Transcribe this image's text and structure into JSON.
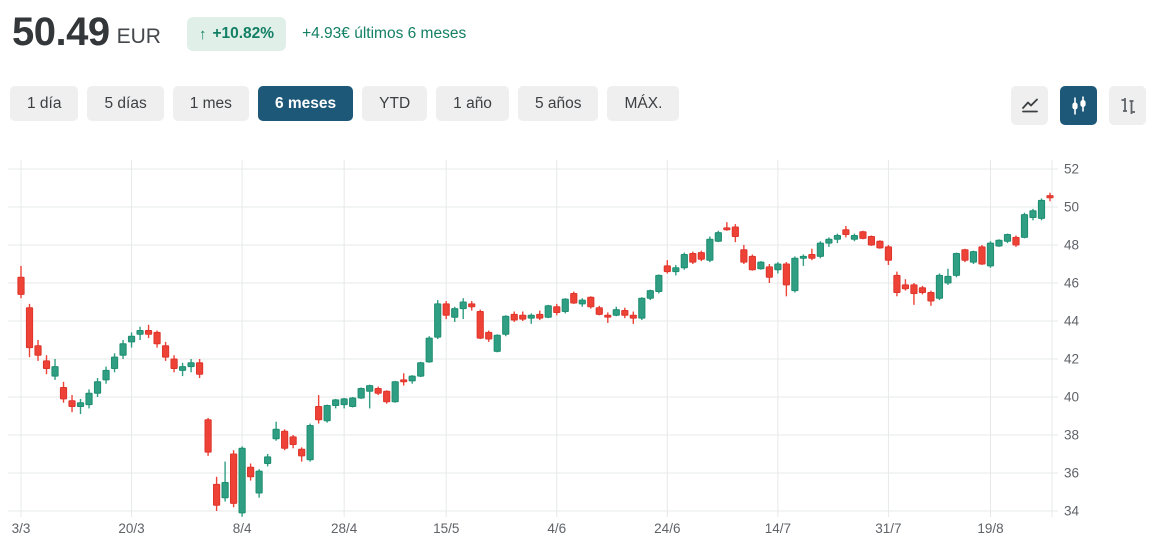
{
  "header": {
    "price": "50.49",
    "currency": "EUR",
    "arrow": "↑",
    "change_percent": "+10.82%",
    "change_text": "+4.93€ últimos 6 meses"
  },
  "range_tabs": [
    {
      "id": "1-dia",
      "label": "1 día",
      "selected": false
    },
    {
      "id": "5-dias",
      "label": "5 días",
      "selected": false
    },
    {
      "id": "1-mes",
      "label": "1 mes",
      "selected": false
    },
    {
      "id": "6-meses",
      "label": "6 meses",
      "selected": true
    },
    {
      "id": "ytd",
      "label": "YTD",
      "selected": false
    },
    {
      "id": "1-ano",
      "label": "1 año",
      "selected": false
    },
    {
      "id": "5-anos",
      "label": "5 años",
      "selected": false
    },
    {
      "id": "max",
      "label": "MÁX.",
      "selected": false
    }
  ],
  "chart_type_buttons": [
    {
      "id": "line-chart-button",
      "icon": "line-chart-icon",
      "selected": false
    },
    {
      "id": "candlestick-button",
      "icon": "candlestick-icon",
      "selected": true
    },
    {
      "id": "ohlc-button",
      "icon": "ohlc-bars-icon",
      "selected": false
    }
  ],
  "colors": {
    "text_dark": "#3c4043",
    "accent_green": "#137f64",
    "badge_bg": "#e0f0e9",
    "tab_bg": "#efefef",
    "selected_bg": "#1d5878",
    "grid": "#e7e8ea",
    "axis_label": "#5f6368"
  },
  "chart_data": {
    "type": "candlestick",
    "currency": "EUR",
    "period": "6 meses",
    "legend_position": "none",
    "grid": true,
    "y_axis_side": "right",
    "y_ticks": [
      34,
      36,
      38,
      40,
      42,
      44,
      46,
      48,
      50,
      52
    ],
    "y_range": [
      33.6,
      52.4
    ],
    "x_ticks": [
      {
        "label": "3/3",
        "index": 0
      },
      {
        "label": "20/3",
        "index": 13
      },
      {
        "label": "8/4",
        "index": 26
      },
      {
        "label": "28/4",
        "index": 38
      },
      {
        "label": "15/5",
        "index": 50
      },
      {
        "label": "4/6",
        "index": 63
      },
      {
        "label": "24/6",
        "index": 76
      },
      {
        "label": "14/7",
        "index": 89
      },
      {
        "label": "31/7",
        "index": 102
      },
      {
        "label": "19/8",
        "index": 114
      }
    ],
    "up_color": "#2f9e82",
    "up_stroke": "#1f8e71",
    "down_color": "#ee4237",
    "down_stroke": "#dd352c",
    "candles_format": [
      "open",
      "high",
      "low",
      "close"
    ],
    "candles": [
      [
        46.3,
        46.9,
        45.2,
        45.4
      ],
      [
        44.7,
        44.9,
        42.1,
        42.6
      ],
      [
        42.7,
        43.0,
        41.9,
        42.2
      ],
      [
        41.9,
        42.2,
        41.2,
        41.5
      ],
      [
        41.1,
        42.0,
        40.9,
        41.6
      ],
      [
        40.5,
        40.8,
        39.7,
        39.9
      ],
      [
        39.8,
        40.1,
        39.2,
        39.5
      ],
      [
        39.5,
        39.9,
        39.1,
        39.7
      ],
      [
        39.6,
        40.4,
        39.4,
        40.2
      ],
      [
        40.2,
        41.0,
        40.0,
        40.8
      ],
      [
        40.9,
        41.6,
        40.7,
        41.4
      ],
      [
        41.5,
        42.3,
        41.3,
        42.1
      ],
      [
        42.2,
        43.0,
        42.0,
        42.8
      ],
      [
        42.9,
        43.4,
        42.6,
        43.2
      ],
      [
        43.3,
        43.7,
        43.0,
        43.5
      ],
      [
        43.5,
        43.8,
        43.1,
        43.3
      ],
      [
        43.4,
        43.5,
        42.6,
        42.8
      ],
      [
        42.7,
        42.9,
        41.9,
        42.1
      ],
      [
        42.0,
        42.2,
        41.3,
        41.5
      ],
      [
        41.4,
        41.8,
        41.1,
        41.6
      ],
      [
        41.6,
        42.0,
        41.3,
        41.8
      ],
      [
        41.8,
        42.0,
        41.0,
        41.2
      ],
      [
        38.8,
        38.9,
        36.9,
        37.1
      ],
      [
        35.4,
        35.8,
        34.0,
        34.3
      ],
      [
        34.7,
        36.6,
        34.5,
        35.5
      ],
      [
        37.0,
        37.2,
        34.2,
        34.4
      ],
      [
        33.9,
        37.4,
        33.7,
        37.3
      ],
      [
        36.3,
        36.5,
        35.6,
        35.8
      ],
      [
        34.95,
        36.2,
        34.7,
        36.1
      ],
      [
        36.5,
        37.0,
        36.35,
        36.85
      ],
      [
        37.8,
        38.7,
        37.7,
        38.3
      ],
      [
        38.2,
        38.3,
        37.2,
        37.3
      ],
      [
        37.9,
        38.0,
        37.3,
        37.5
      ],
      [
        37.25,
        37.35,
        36.6,
        36.9
      ],
      [
        36.7,
        38.6,
        36.6,
        38.5
      ],
      [
        39.5,
        40.1,
        38.6,
        38.8
      ],
      [
        38.75,
        39.6,
        38.65,
        39.55
      ],
      [
        39.55,
        39.9,
        39.4,
        39.85
      ],
      [
        39.6,
        39.95,
        39.4,
        39.9
      ],
      [
        39.5,
        40.0,
        39.45,
        39.95
      ],
      [
        39.95,
        40.5,
        39.9,
        40.45
      ],
      [
        40.3,
        40.65,
        39.4,
        40.6
      ],
      [
        40.45,
        40.55,
        40.1,
        40.2
      ],
      [
        40.3,
        40.35,
        39.65,
        39.75
      ],
      [
        39.75,
        40.85,
        39.7,
        40.8
      ],
      [
        40.9,
        41.25,
        40.6,
        40.85
      ],
      [
        40.85,
        41.15,
        40.7,
        41.1
      ],
      [
        41.1,
        41.85,
        41.05,
        41.8
      ],
      [
        41.85,
        43.2,
        41.8,
        43.1
      ],
      [
        43.15,
        45.1,
        43.05,
        44.9
      ],
      [
        44.9,
        45.05,
        44.1,
        44.3
      ],
      [
        44.2,
        44.75,
        43.95,
        44.65
      ],
      [
        44.65,
        45.2,
        44.1,
        45.0
      ],
      [
        44.9,
        45.05,
        44.55,
        44.75
      ],
      [
        44.5,
        44.6,
        43.05,
        43.1
      ],
      [
        43.4,
        43.5,
        42.9,
        43.05
      ],
      [
        42.4,
        43.3,
        42.35,
        43.25
      ],
      [
        43.3,
        44.3,
        43.2,
        44.25
      ],
      [
        44.35,
        44.5,
        43.95,
        44.05
      ],
      [
        44.3,
        44.5,
        44.0,
        44.1
      ],
      [
        44.15,
        44.4,
        43.85,
        44.3
      ],
      [
        44.35,
        44.55,
        44.05,
        44.15
      ],
      [
        44.2,
        44.85,
        44.15,
        44.8
      ],
      [
        44.75,
        44.9,
        44.3,
        44.45
      ],
      [
        44.5,
        45.2,
        44.4,
        45.15
      ],
      [
        45.45,
        45.55,
        44.9,
        44.95
      ],
      [
        44.9,
        45.2,
        44.75,
        45.1
      ],
      [
        45.25,
        45.3,
        44.65,
        44.75
      ],
      [
        44.7,
        44.8,
        44.3,
        44.35
      ],
      [
        44.3,
        44.45,
        43.9,
        44.25
      ],
      [
        44.3,
        44.75,
        44.25,
        44.6
      ],
      [
        44.55,
        44.7,
        44.15,
        44.3
      ],
      [
        44.3,
        44.5,
        43.85,
        44.15
      ],
      [
        44.15,
        45.25,
        44.05,
        45.2
      ],
      [
        45.2,
        45.65,
        45.1,
        45.6
      ],
      [
        45.55,
        46.45,
        45.45,
        46.4
      ],
      [
        46.9,
        47.2,
        46.5,
        46.6
      ],
      [
        46.6,
        46.95,
        46.4,
        46.8
      ],
      [
        46.8,
        47.6,
        46.7,
        47.5
      ],
      [
        47.55,
        47.65,
        47.0,
        47.1
      ],
      [
        47.6,
        47.7,
        47.15,
        47.25
      ],
      [
        47.2,
        48.45,
        47.1,
        48.3
      ],
      [
        48.2,
        48.75,
        48.15,
        48.65
      ],
      [
        48.9,
        49.2,
        48.75,
        48.85
      ],
      [
        48.95,
        49.1,
        48.15,
        48.45
      ],
      [
        47.75,
        48.0,
        47.0,
        47.1
      ],
      [
        47.4,
        47.5,
        46.65,
        46.7
      ],
      [
        46.75,
        47.15,
        46.7,
        47.1
      ],
      [
        46.85,
        47.0,
        46.0,
        46.3
      ],
      [
        46.7,
        47.1,
        46.5,
        47.0
      ],
      [
        47.0,
        47.1,
        45.3,
        45.9
      ],
      [
        45.6,
        47.4,
        45.5,
        47.3
      ],
      [
        47.3,
        47.5,
        46.9,
        47.4
      ],
      [
        47.5,
        47.8,
        47.2,
        47.3
      ],
      [
        47.4,
        48.2,
        47.3,
        48.1
      ],
      [
        48.1,
        48.4,
        47.9,
        48.3
      ],
      [
        48.3,
        48.6,
        48.1,
        48.5
      ],
      [
        48.8,
        49.0,
        48.4,
        48.55
      ],
      [
        48.3,
        48.6,
        48.2,
        48.5
      ],
      [
        48.7,
        48.75,
        48.3,
        48.35
      ],
      [
        48.45,
        48.5,
        47.95,
        48.0
      ],
      [
        48.2,
        48.25,
        47.8,
        47.85
      ],
      [
        47.9,
        48.0,
        46.95,
        47.2
      ],
      [
        46.4,
        46.6,
        45.3,
        45.5
      ],
      [
        45.9,
        46.2,
        45.6,
        45.7
      ],
      [
        45.9,
        46.0,
        44.85,
        45.45
      ],
      [
        45.75,
        45.85,
        45.4,
        45.5
      ],
      [
        45.5,
        45.6,
        44.8,
        45.05
      ],
      [
        45.2,
        46.5,
        45.1,
        46.4
      ],
      [
        46.0,
        46.75,
        45.9,
        46.35
      ],
      [
        46.4,
        47.6,
        46.3,
        47.55
      ],
      [
        47.75,
        47.8,
        47.1,
        47.2
      ],
      [
        47.1,
        47.7,
        47.0,
        47.65
      ],
      [
        47.9,
        48.0,
        46.95,
        47.0
      ],
      [
        46.9,
        48.2,
        46.8,
        48.1
      ],
      [
        47.95,
        48.3,
        47.9,
        48.25
      ],
      [
        48.2,
        48.6,
        48.1,
        48.55
      ],
      [
        48.4,
        48.5,
        47.9,
        48.0
      ],
      [
        48.4,
        49.7,
        48.35,
        49.6
      ],
      [
        49.45,
        49.9,
        49.3,
        49.8
      ],
      [
        49.4,
        50.45,
        49.3,
        50.35
      ],
      [
        50.6,
        50.75,
        50.3,
        50.49
      ]
    ]
  }
}
